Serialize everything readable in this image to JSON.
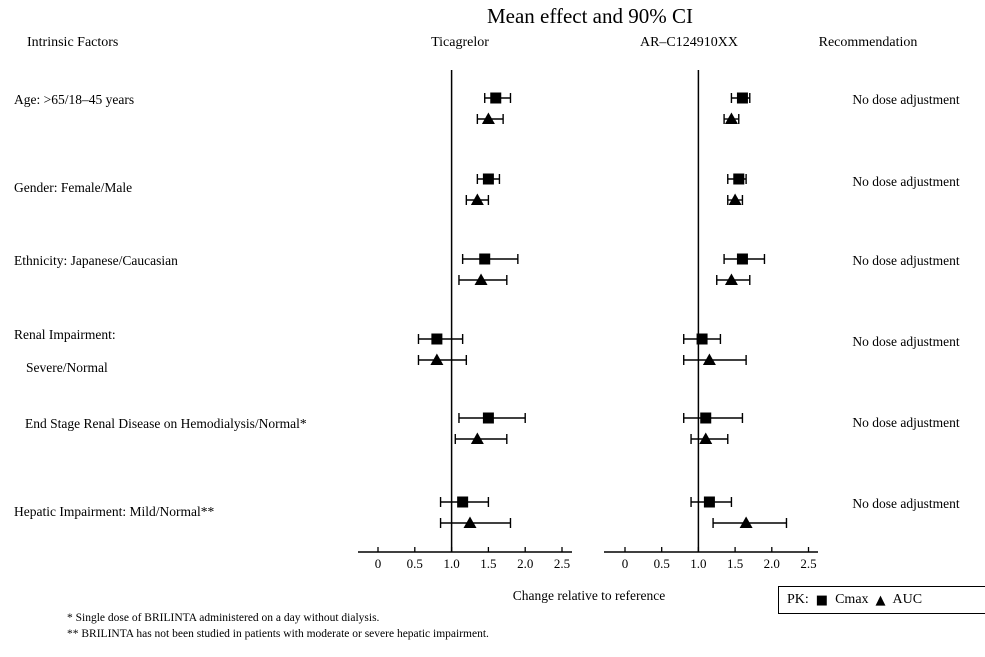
{
  "title": "Mean effect and 90% CI",
  "columns": {
    "factors_header": "Intrinsic Factors",
    "panel1_header": "Ticagrelor",
    "panel2_header": "AR–C124910XX",
    "recommendation_header": "Recommendation"
  },
  "axis": {
    "xlabel": "Change relative to reference",
    "tick_labels": [
      "0",
      "0.5",
      "1.0",
      "1.5",
      "2.0",
      "2.5"
    ],
    "tick_values": [
      0,
      0.5,
      1.0,
      1.5,
      2.0,
      2.5
    ],
    "reference_value": 1.0,
    "range": [
      0,
      2.5
    ]
  },
  "legend": {
    "prefix": "PK:",
    "items": [
      {
        "marker": "square",
        "label": "Cmax"
      },
      {
        "marker": "triangle",
        "label": "AUC"
      }
    ]
  },
  "footnotes": [
    "* Single dose of BRILINTA administered on a day without dialysis.",
    "** BRILINTA has not been studied in patients with moderate or severe hepatic impairment."
  ],
  "chart_data": {
    "type": "forest",
    "panels": [
      "Ticagrelor",
      "AR–C124910XX"
    ],
    "series_markers": {
      "cmax": "square",
      "auc": "triangle"
    },
    "ci_level": "90%",
    "rows": [
      {
        "factor_lines": [
          "Age: >65/18–45 years"
        ],
        "recommendation": "No dose adjustment",
        "ticagrelor": {
          "cmax": {
            "mean": 1.6,
            "low": 1.45,
            "high": 1.8
          },
          "auc": {
            "mean": 1.5,
            "low": 1.35,
            "high": 1.7
          }
        },
        "ar_c124910xx": {
          "cmax": {
            "mean": 1.6,
            "low": 1.45,
            "high": 1.7
          },
          "auc": {
            "mean": 1.45,
            "low": 1.35,
            "high": 1.55
          }
        }
      },
      {
        "factor_lines": [
          "Gender: Female/Male"
        ],
        "recommendation": "No dose adjustment",
        "ticagrelor": {
          "cmax": {
            "mean": 1.5,
            "low": 1.35,
            "high": 1.65
          },
          "auc": {
            "mean": 1.35,
            "low": 1.2,
            "high": 1.5
          }
        },
        "ar_c124910xx": {
          "cmax": {
            "mean": 1.55,
            "low": 1.4,
            "high": 1.65
          },
          "auc": {
            "mean": 1.5,
            "low": 1.4,
            "high": 1.6
          }
        }
      },
      {
        "factor_lines": [
          "Ethnicity: Japanese/Caucasian"
        ],
        "recommendation": "No dose adjustment",
        "ticagrelor": {
          "cmax": {
            "mean": 1.45,
            "low": 1.15,
            "high": 1.9
          },
          "auc": {
            "mean": 1.4,
            "low": 1.1,
            "high": 1.75
          }
        },
        "ar_c124910xx": {
          "cmax": {
            "mean": 1.6,
            "low": 1.35,
            "high": 1.9
          },
          "auc": {
            "mean": 1.45,
            "low": 1.25,
            "high": 1.7
          }
        }
      },
      {
        "factor_lines": [
          "Renal Impairment:",
          "Severe/Normal"
        ],
        "recommendation": "No dose adjustment",
        "ticagrelor": {
          "cmax": {
            "mean": 0.8,
            "low": 0.55,
            "high": 1.15
          },
          "auc": {
            "mean": 0.8,
            "low": 0.55,
            "high": 1.2
          }
        },
        "ar_c124910xx": {
          "cmax": {
            "mean": 1.05,
            "low": 0.8,
            "high": 1.3
          },
          "auc": {
            "mean": 1.15,
            "low": 0.8,
            "high": 1.65
          }
        }
      },
      {
        "factor_lines": [
          "End Stage Renal Disease on Hemodialysis/Normal*"
        ],
        "recommendation": "No dose adjustment",
        "ticagrelor": {
          "cmax": {
            "mean": 1.5,
            "low": 1.1,
            "high": 2.0
          },
          "auc": {
            "mean": 1.35,
            "low": 1.05,
            "high": 1.75
          }
        },
        "ar_c124910xx": {
          "cmax": {
            "mean": 1.1,
            "low": 0.8,
            "high": 1.6
          },
          "auc": {
            "mean": 1.1,
            "low": 0.9,
            "high": 1.4
          }
        }
      },
      {
        "factor_lines": [
          "Hepatic Impairment: Mild/Normal**"
        ],
        "recommendation": "No dose adjustment",
        "ticagrelor": {
          "cmax": {
            "mean": 1.15,
            "low": 0.85,
            "high": 1.5
          },
          "auc": {
            "mean": 1.25,
            "low": 0.85,
            "high": 1.8
          }
        },
        "ar_c124910xx": {
          "cmax": {
            "mean": 1.15,
            "low": 0.9,
            "high": 1.45
          },
          "auc": {
            "mean": 1.65,
            "low": 1.2,
            "high": 2.2
          }
        }
      }
    ]
  }
}
